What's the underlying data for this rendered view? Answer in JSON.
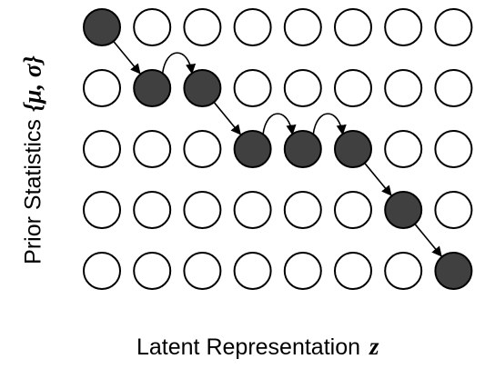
{
  "diagram": {
    "rows": 5,
    "cols": 8,
    "filled_color": "#404040",
    "empty_color": "#ffffff",
    "stroke_color": "#000000",
    "path": [
      [
        0,
        0
      ],
      [
        1,
        1
      ],
      [
        1,
        2
      ],
      [
        2,
        3
      ],
      [
        2,
        4
      ],
      [
        2,
        5
      ],
      [
        3,
        6
      ],
      [
        4,
        7
      ]
    ],
    "edges": [
      {
        "from": [
          0,
          0
        ],
        "to": [
          1,
          1
        ],
        "kind": "diagonal"
      },
      {
        "from": [
          1,
          1
        ],
        "to": [
          1,
          2
        ],
        "kind": "arc"
      },
      {
        "from": [
          1,
          2
        ],
        "to": [
          2,
          3
        ],
        "kind": "diagonal"
      },
      {
        "from": [
          2,
          3
        ],
        "to": [
          2,
          4
        ],
        "kind": "arc"
      },
      {
        "from": [
          2,
          4
        ],
        "to": [
          2,
          5
        ],
        "kind": "arc"
      },
      {
        "from": [
          2,
          5
        ],
        "to": [
          3,
          6
        ],
        "kind": "diagonal"
      },
      {
        "from": [
          3,
          6
        ],
        "to": [
          4,
          7
        ],
        "kind": "diagonal"
      }
    ]
  },
  "labels": {
    "x_axis": "Latent Representation",
    "x_symbol": "z",
    "y_axis": "Prior Statistics",
    "y_symbol": "{μ, σ}"
  }
}
